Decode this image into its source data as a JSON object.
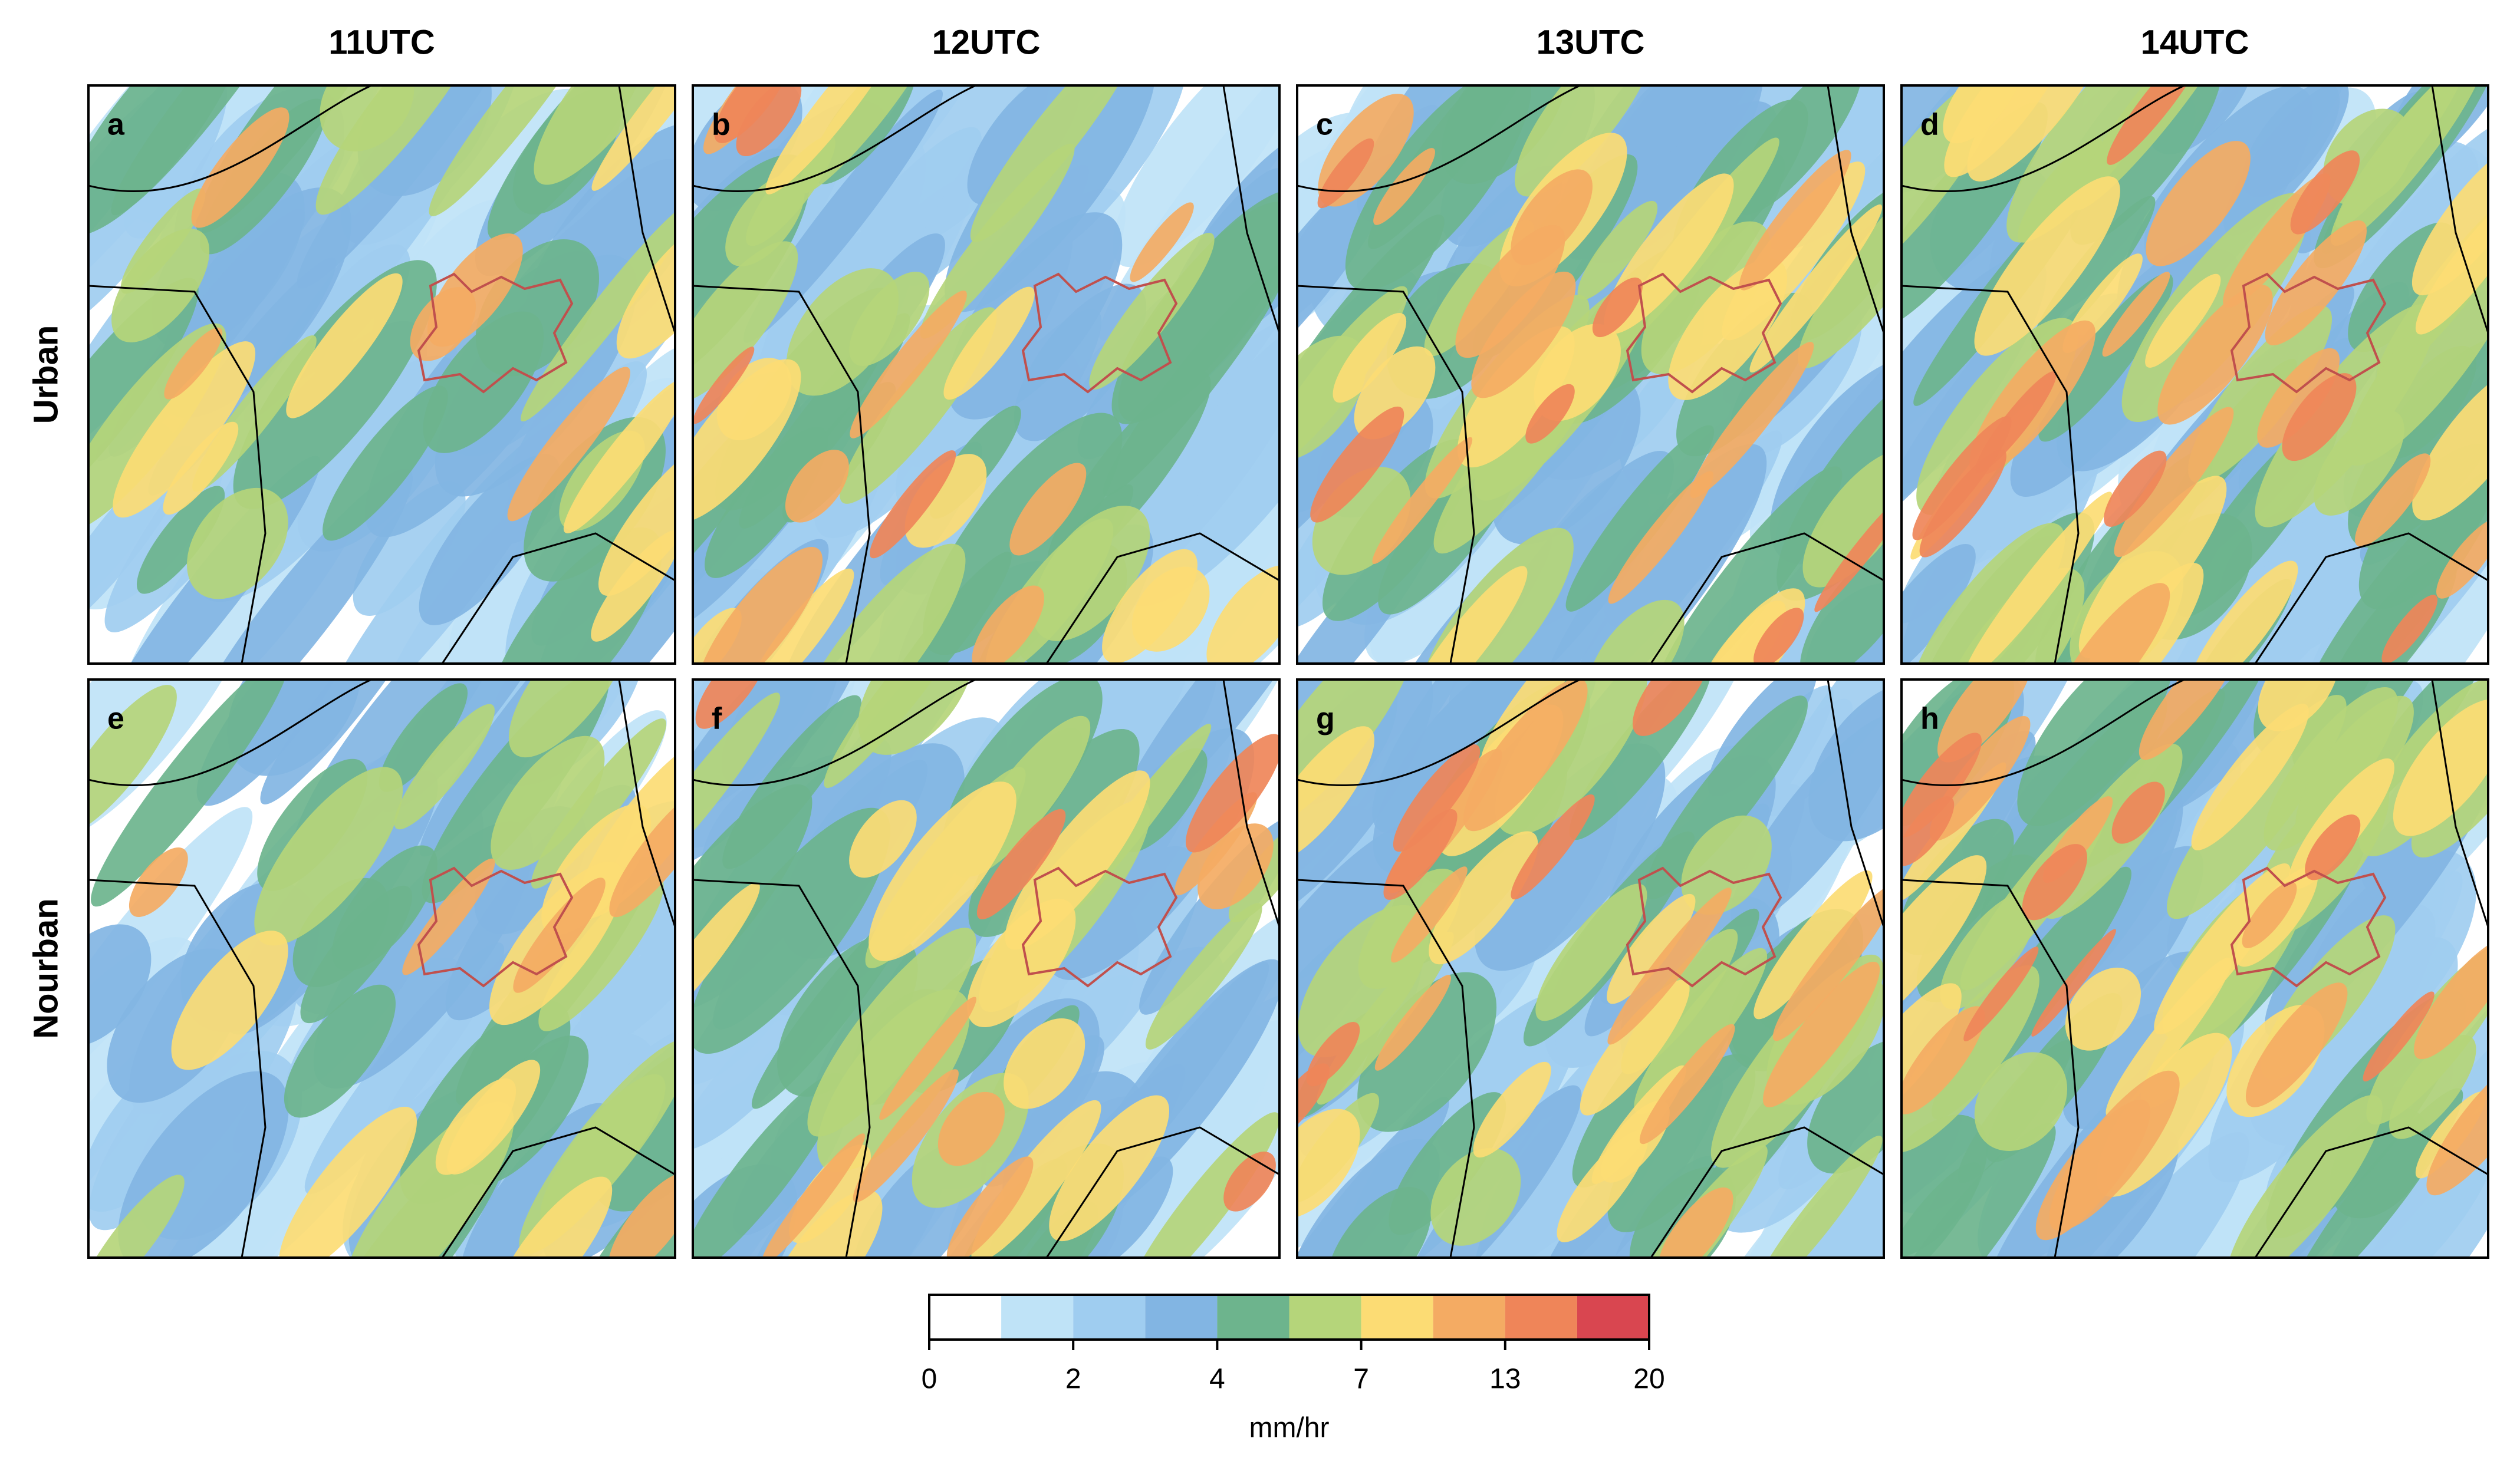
{
  "columns": [
    "11UTC",
    "12UTC",
    "13UTC",
    "14UTC"
  ],
  "rows": [
    "Urban",
    "Nourban"
  ],
  "panels": [
    "a",
    "b",
    "c",
    "d",
    "e",
    "f",
    "g",
    "h"
  ],
  "colorbar": {
    "colors": [
      "#ffffff",
      "#bfe3f7",
      "#9fcdf0",
      "#82b5e3",
      "#6db48d",
      "#b5d57a",
      "#fcdc74",
      "#f4ab63",
      "#ef8559",
      "#d94650"
    ],
    "ticks": [
      0,
      2,
      4,
      7,
      13,
      20
    ],
    "label": "mm/hr"
  }
}
